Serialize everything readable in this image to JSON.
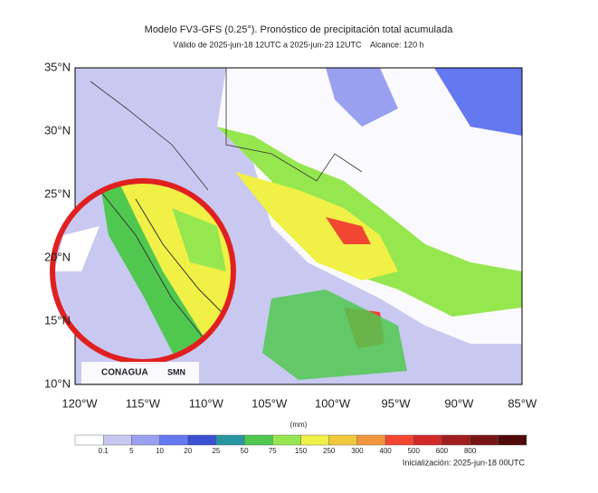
{
  "header": {
    "title": "Modelo FV3-GFS (0.25°). Pronóstico de precipitación total acumulada",
    "subtitle": "Válido de 2025-jun-18 12UTC a 2025-jun-23 12UTC    Alcance: 120 h"
  },
  "map": {
    "lat_labels": [
      "35°N",
      "30°N",
      "25°N",
      "20°N",
      "15°N",
      "10°N"
    ],
    "lon_labels": [
      "120°W",
      "115°W",
      "110°W",
      "105°W",
      "100°W",
      "95°W",
      "90°W",
      "85°W"
    ],
    "logos": [
      "CONAGUA",
      "SMN"
    ]
  },
  "colorbar": {
    "unit": "(mm)",
    "colors": [
      "#ffffff",
      "#c8c8f0",
      "#9aa0f0",
      "#6478f0",
      "#3c50d2",
      "#2896a0",
      "#50c850",
      "#96e650",
      "#f0f046",
      "#f0c83c",
      "#f0963c",
      "#f04632",
      "#d22828",
      "#a01e1e",
      "#781414",
      "#500a0a"
    ],
    "labels": [
      0.1,
      5,
      10,
      20,
      25,
      50,
      75,
      150,
      250,
      300,
      400,
      500,
      600,
      800
    ]
  },
  "footer": {
    "initialization": "Inicialización: 2025-jun-18 00UTC"
  }
}
